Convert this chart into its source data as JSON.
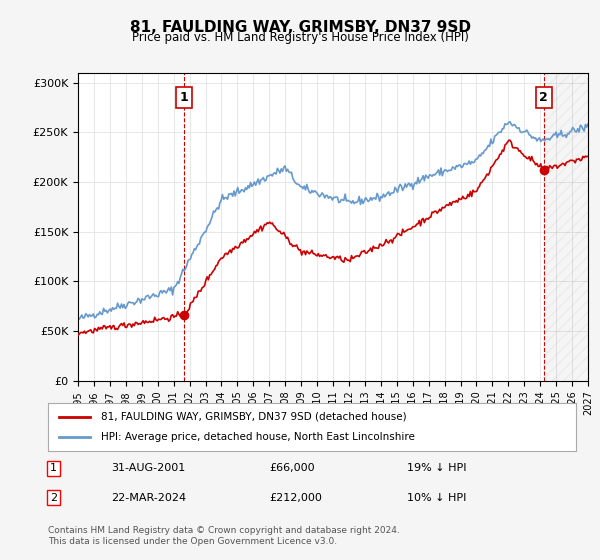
{
  "title": "81, FAULDING WAY, GRIMSBY, DN37 9SD",
  "subtitle": "Price paid vs. HM Land Registry's House Price Index (HPI)",
  "legend_label_red": "81, FAULDING WAY, GRIMSBY, DN37 9SD (detached house)",
  "legend_label_blue": "HPI: Average price, detached house, North East Lincolnshire",
  "transaction1_label": "1",
  "transaction1_date": "31-AUG-2001",
  "transaction1_price": "£66,000",
  "transaction1_hpi": "19% ↓ HPI",
  "transaction2_label": "2",
  "transaction2_date": "22-MAR-2024",
  "transaction2_price": "£212,000",
  "transaction2_hpi": "10% ↓ HPI",
  "footer": "Contains HM Land Registry data © Crown copyright and database right 2024.\nThis data is licensed under the Open Government Licence v3.0.",
  "ylim": [
    0,
    310000
  ],
  "yticks": [
    0,
    50000,
    100000,
    150000,
    200000,
    250000,
    300000
  ],
  "bg_color": "#f5f5f5",
  "plot_bg_color": "#ffffff",
  "red_color": "#cc0000",
  "blue_color": "#6699cc",
  "marker1_x": 2001.67,
  "marker1_y": 66000,
  "marker2_x": 2024.22,
  "marker2_y": 212000,
  "vline1_x": 2001.67,
  "vline2_x": 2024.22,
  "xmin": 1995,
  "xmax": 2027,
  "xticks": [
    1995,
    1996,
    1997,
    1998,
    1999,
    2000,
    2001,
    2002,
    2003,
    2004,
    2005,
    2006,
    2007,
    2008,
    2009,
    2010,
    2011,
    2012,
    2013,
    2014,
    2015,
    2016,
    2017,
    2018,
    2019,
    2020,
    2021,
    2022,
    2023,
    2024,
    2025,
    2026,
    2027
  ]
}
